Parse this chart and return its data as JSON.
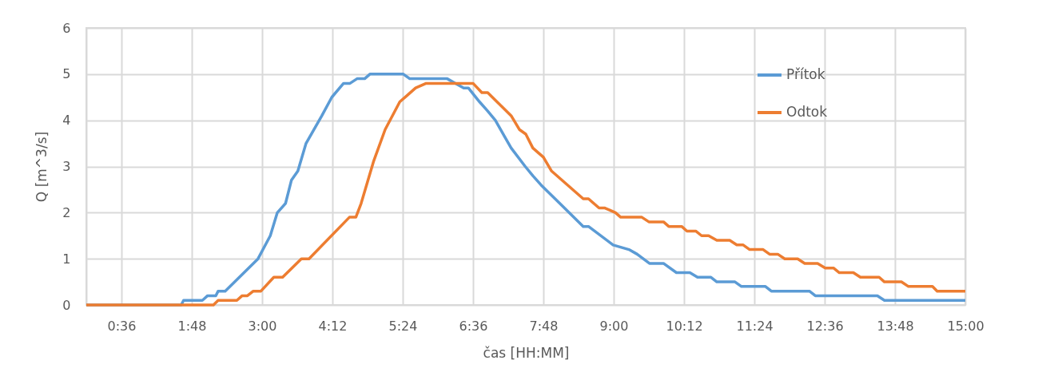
{
  "chart_data": {
    "type": "line",
    "xlabel": "čas [HH:MM]",
    "ylabel": "Q [m^3/s]",
    "xlim": [
      0,
      15
    ],
    "xticks": [
      {
        "value": 0,
        "label": null
      },
      {
        "value": 0.6,
        "label": "0:36"
      },
      {
        "value": 1.8,
        "label": "1:48"
      },
      {
        "value": 3,
        "label": "3:00"
      },
      {
        "value": 4.2,
        "label": "4:12"
      },
      {
        "value": 5.4,
        "label": "5:24"
      },
      {
        "value": 6.6,
        "label": "6:36"
      },
      {
        "value": 7.8,
        "label": "7:48"
      },
      {
        "value": 9,
        "label": "9:00"
      },
      {
        "value": 10.2,
        "label": "10:12"
      },
      {
        "value": 11.4,
        "label": "11:24"
      },
      {
        "value": 12.6,
        "label": "12:36"
      },
      {
        "value": 13.8,
        "label": "13:48"
      },
      {
        "value": 15,
        "label": "15:00"
      }
    ],
    "ylim": [
      0,
      6
    ],
    "yticks": [
      0,
      1,
      2,
      3,
      4,
      5,
      6
    ],
    "grid": true,
    "legend": "top right",
    "line_style": "solid",
    "marker": "none",
    "series": [
      {
        "name": "Přítok",
        "color": "#5b9bd5",
        "x": [
          0,
          1.62,
          1.66,
          1.98,
          2.07,
          2.21,
          2.25,
          2.37,
          2.93,
          3.14,
          3.26,
          3.4,
          3.5,
          3.61,
          3.75,
          4.02,
          4.19,
          4.39,
          4.5,
          4.62,
          4.75,
          4.84,
          5.41,
          5.52,
          6.16,
          6.3,
          6.44,
          6.52,
          6.71,
          6.85,
          6.98,
          7.16,
          7.25,
          7.49,
          7.62,
          7.76,
          8.48,
          8.57,
          8.99,
          9.26,
          9.4,
          9.61,
          9.85,
          10.07,
          10.3,
          10.43,
          10.66,
          10.76,
          11.07,
          11.18,
          11.59,
          11.69,
          12.34,
          12.44,
          13.5,
          13.62,
          15
        ],
        "values": [
          0,
          0,
          0.1,
          0.1,
          0.2,
          0.2,
          0.3,
          0.3,
          1.0,
          1.5,
          2.0,
          2.2,
          2.7,
          2.9,
          3.5,
          4.1,
          4.5,
          4.8,
          4.8,
          4.9,
          4.9,
          5.0,
          5.0,
          4.9,
          4.9,
          4.8,
          4.7,
          4.7,
          4.4,
          4.2,
          4.0,
          3.6,
          3.4,
          3.0,
          2.8,
          2.6,
          1.7,
          1.7,
          1.3,
          1.2,
          1.1,
          0.9,
          0.9,
          0.7,
          0.7,
          0.6,
          0.6,
          0.5,
          0.5,
          0.4,
          0.4,
          0.3,
          0.3,
          0.2,
          0.2,
          0.1,
          0.1
        ]
      },
      {
        "name": "Odtok",
        "color": "#ed7d31",
        "x": [
          0,
          2.17,
          2.25,
          2.57,
          2.66,
          2.75,
          2.85,
          2.98,
          3.2,
          3.35,
          3.67,
          3.8,
          4.49,
          4.6,
          4.69,
          4.9,
          5.1,
          5.35,
          5.62,
          5.8,
          6.6,
          6.75,
          6.85,
          7.25,
          7.39,
          7.5,
          7.62,
          7.8,
          7.94,
          8.48,
          8.57,
          8.75,
          8.85,
          9.03,
          9.12,
          9.48,
          9.6,
          9.85,
          9.94,
          10.16,
          10.25,
          10.4,
          10.5,
          10.62,
          10.76,
          10.98,
          11.1,
          11.21,
          11.32,
          11.55,
          11.66,
          11.8,
          11.92,
          12.14,
          12.26,
          12.48,
          12.61,
          12.75,
          12.85,
          13.09,
          13.21,
          13.53,
          13.62,
          13.91,
          14.03,
          14.44,
          14.52,
          15
        ],
        "values": [
          0,
          0,
          0.1,
          0.1,
          0.2,
          0.2,
          0.3,
          0.3,
          0.6,
          0.6,
          1.0,
          1.0,
          1.9,
          1.9,
          2.2,
          3.1,
          3.8,
          4.4,
          4.7,
          4.8,
          4.8,
          4.6,
          4.6,
          4.1,
          3.8,
          3.7,
          3.4,
          3.2,
          2.9,
          2.3,
          2.3,
          2.1,
          2.1,
          2.0,
          1.9,
          1.9,
          1.8,
          1.8,
          1.7,
          1.7,
          1.6,
          1.6,
          1.5,
          1.5,
          1.4,
          1.4,
          1.3,
          1.3,
          1.2,
          1.2,
          1.1,
          1.1,
          1.0,
          1.0,
          0.9,
          0.9,
          0.8,
          0.8,
          0.7,
          0.7,
          0.6,
          0.6,
          0.5,
          0.5,
          0.4,
          0.4,
          0.3,
          0.3
        ]
      }
    ]
  }
}
